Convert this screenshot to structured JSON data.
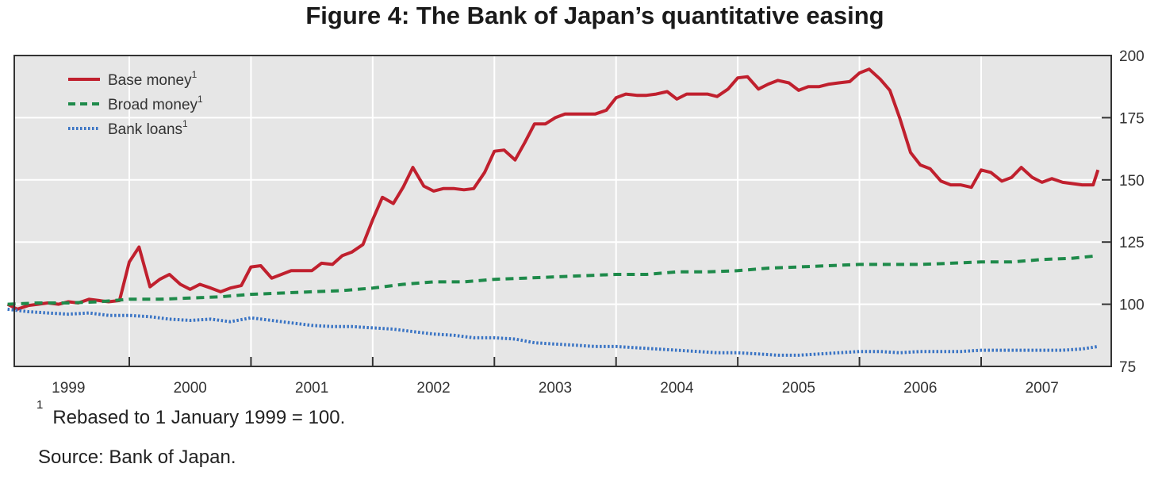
{
  "chart_data": {
    "type": "line",
    "title": "Figure 4: The Bank of Japan’s quantitative easing",
    "x_axis": {
      "ticks": [
        "1999",
        "2000",
        "2001",
        "2002",
        "2003",
        "2004",
        "2005",
        "2006",
        "2007"
      ],
      "range_years": [
        1999,
        2007.58
      ]
    },
    "y_axis": {
      "position": "right",
      "ticks": [
        75,
        100,
        125,
        150,
        175,
        200
      ],
      "ylim": [
        75,
        200
      ]
    },
    "grid": true,
    "legend_position": "top-left",
    "legend_superscript": "1",
    "series": [
      {
        "name": "Base money",
        "color": "#c0202e",
        "style": "solid",
        "points": [
          [
            1999.0,
            100
          ],
          [
            1999.08,
            98
          ],
          [
            1999.17,
            99.5
          ],
          [
            1999.25,
            100
          ],
          [
            1999.33,
            100.5
          ],
          [
            1999.42,
            100
          ],
          [
            1999.5,
            101
          ],
          [
            1999.58,
            100.5
          ],
          [
            1999.67,
            102
          ],
          [
            1999.75,
            101.5
          ],
          [
            1999.83,
            101
          ],
          [
            1999.92,
            101.5
          ],
          [
            2000.0,
            117
          ],
          [
            2000.08,
            123
          ],
          [
            2000.17,
            107
          ],
          [
            2000.25,
            110
          ],
          [
            2000.33,
            112
          ],
          [
            2000.42,
            108
          ],
          [
            2000.5,
            106
          ],
          [
            2000.58,
            108
          ],
          [
            2000.67,
            106.5
          ],
          [
            2000.75,
            105
          ],
          [
            2000.83,
            106.5
          ],
          [
            2000.92,
            107.5
          ],
          [
            2001.0,
            115
          ],
          [
            2001.08,
            115.5
          ],
          [
            2001.17,
            110.5
          ],
          [
            2001.25,
            112
          ],
          [
            2001.33,
            113.5
          ],
          [
            2001.42,
            113.5
          ],
          [
            2001.5,
            113.5
          ],
          [
            2001.58,
            116.5
          ],
          [
            2001.67,
            116
          ],
          [
            2001.75,
            119.5
          ],
          [
            2001.83,
            121
          ],
          [
            2001.92,
            124
          ],
          [
            2002.0,
            134
          ],
          [
            2002.08,
            143
          ],
          [
            2002.17,
            140.5
          ],
          [
            2002.25,
            147
          ],
          [
            2002.33,
            155
          ],
          [
            2002.42,
            147.5
          ],
          [
            2002.5,
            145.5
          ],
          [
            2002.58,
            146.5
          ],
          [
            2002.67,
            146.5
          ],
          [
            2002.75,
            146
          ],
          [
            2002.83,
            146.5
          ],
          [
            2002.92,
            153
          ],
          [
            2003.0,
            161.5
          ],
          [
            2003.08,
            162
          ],
          [
            2003.17,
            158
          ],
          [
            2003.25,
            165
          ],
          [
            2003.33,
            172.5
          ],
          [
            2003.42,
            172.5
          ],
          [
            2003.5,
            175
          ],
          [
            2003.58,
            176.5
          ],
          [
            2003.67,
            176.5
          ],
          [
            2003.75,
            176.5
          ],
          [
            2003.83,
            176.5
          ],
          [
            2003.92,
            178
          ],
          [
            2004.0,
            183
          ],
          [
            2004.08,
            184.5
          ],
          [
            2004.17,
            184
          ],
          [
            2004.25,
            184
          ],
          [
            2004.33,
            184.5
          ],
          [
            2004.42,
            185.5
          ],
          [
            2004.5,
            182.5
          ],
          [
            2004.58,
            184.5
          ],
          [
            2004.67,
            184.5
          ],
          [
            2004.75,
            184.5
          ],
          [
            2004.83,
            183.5
          ],
          [
            2004.92,
            186.5
          ],
          [
            2005.0,
            191
          ],
          [
            2005.08,
            191.5
          ],
          [
            2005.17,
            186.5
          ],
          [
            2005.25,
            188.5
          ],
          [
            2005.33,
            190
          ],
          [
            2005.42,
            189
          ],
          [
            2005.5,
            186
          ],
          [
            2005.58,
            187.5
          ],
          [
            2005.67,
            187.5
          ],
          [
            2005.75,
            188.5
          ],
          [
            2005.83,
            189
          ],
          [
            2005.92,
            189.5
          ],
          [
            2006.0,
            193
          ],
          [
            2006.08,
            194.5
          ],
          [
            2006.17,
            190.5
          ],
          [
            2006.25,
            186
          ],
          [
            2006.33,
            175
          ],
          [
            2006.42,
            161
          ],
          [
            2006.5,
            156
          ],
          [
            2006.58,
            154.5
          ],
          [
            2006.67,
            149.5
          ],
          [
            2006.75,
            148
          ],
          [
            2006.83,
            148
          ],
          [
            2006.92,
            147
          ],
          [
            2007.0,
            154
          ],
          [
            2007.08,
            153
          ],
          [
            2007.17,
            149.5
          ],
          [
            2007.25,
            151
          ],
          [
            2007.33,
            155
          ],
          [
            2007.42,
            151
          ],
          [
            2007.5,
            149
          ],
          [
            2007.58,
            150.5
          ],
          [
            2007.67,
            149
          ],
          [
            2007.75,
            148.5
          ],
          [
            2007.83,
            148
          ],
          [
            2007.92,
            148
          ],
          [
            2007.96,
            154
          ]
        ]
      },
      {
        "name": "Broad money",
        "color": "#1e8a4a",
        "style": "dashed",
        "points": [
          [
            1999.0,
            100
          ],
          [
            1999.25,
            100.5
          ],
          [
            1999.5,
            100.5
          ],
          [
            1999.75,
            101
          ],
          [
            2000.0,
            102
          ],
          [
            2000.25,
            102
          ],
          [
            2000.5,
            102.5
          ],
          [
            2000.75,
            103
          ],
          [
            2001.0,
            104
          ],
          [
            2001.25,
            104.5
          ],
          [
            2001.5,
            105
          ],
          [
            2001.75,
            105.5
          ],
          [
            2002.0,
            106.5
          ],
          [
            2002.25,
            108
          ],
          [
            2002.5,
            109
          ],
          [
            2002.75,
            109
          ],
          [
            2003.0,
            110
          ],
          [
            2003.25,
            110.5
          ],
          [
            2003.5,
            111
          ],
          [
            2003.75,
            111.5
          ],
          [
            2004.0,
            112
          ],
          [
            2004.25,
            112
          ],
          [
            2004.5,
            113
          ],
          [
            2004.75,
            113
          ],
          [
            2005.0,
            113.5
          ],
          [
            2005.25,
            114.5
          ],
          [
            2005.5,
            115
          ],
          [
            2005.75,
            115.5
          ],
          [
            2006.0,
            116
          ],
          [
            2006.25,
            116
          ],
          [
            2006.5,
            116
          ],
          [
            2006.75,
            116.5
          ],
          [
            2007.0,
            117
          ],
          [
            2007.25,
            117
          ],
          [
            2007.5,
            118
          ],
          [
            2007.75,
            118.5
          ],
          [
            2007.96,
            119.5
          ]
        ]
      },
      {
        "name": "Bank loans",
        "color": "#3a74c4",
        "style": "dotted",
        "points": [
          [
            1999.0,
            98
          ],
          [
            1999.17,
            97
          ],
          [
            1999.33,
            96.5
          ],
          [
            1999.5,
            96
          ],
          [
            1999.67,
            96.5
          ],
          [
            1999.83,
            95.5
          ],
          [
            2000.0,
            95.5
          ],
          [
            2000.17,
            95
          ],
          [
            2000.33,
            94
          ],
          [
            2000.5,
            93.5
          ],
          [
            2000.67,
            94
          ],
          [
            2000.83,
            93
          ],
          [
            2001.0,
            94.5
          ],
          [
            2001.17,
            93.5
          ],
          [
            2001.33,
            92.5
          ],
          [
            2001.5,
            91.5
          ],
          [
            2001.67,
            91
          ],
          [
            2001.83,
            91
          ],
          [
            2002.0,
            90.5
          ],
          [
            2002.17,
            90
          ],
          [
            2002.33,
            89
          ],
          [
            2002.5,
            88
          ],
          [
            2002.67,
            87.5
          ],
          [
            2002.83,
            86.5
          ],
          [
            2003.0,
            86.5
          ],
          [
            2003.17,
            86
          ],
          [
            2003.33,
            84.5
          ],
          [
            2003.5,
            84
          ],
          [
            2003.67,
            83.5
          ],
          [
            2003.83,
            83
          ],
          [
            2004.0,
            83
          ],
          [
            2004.17,
            82.5
          ],
          [
            2004.33,
            82
          ],
          [
            2004.5,
            81.5
          ],
          [
            2004.67,
            81
          ],
          [
            2004.83,
            80.5
          ],
          [
            2005.0,
            80.5
          ],
          [
            2005.17,
            80
          ],
          [
            2005.33,
            79.5
          ],
          [
            2005.5,
            79.5
          ],
          [
            2005.67,
            80
          ],
          [
            2005.83,
            80.5
          ],
          [
            2006.0,
            81
          ],
          [
            2006.17,
            81
          ],
          [
            2006.33,
            80.5
          ],
          [
            2006.5,
            81
          ],
          [
            2006.67,
            81
          ],
          [
            2006.83,
            81
          ],
          [
            2007.0,
            81.5
          ],
          [
            2007.17,
            81.5
          ],
          [
            2007.33,
            81.5
          ],
          [
            2007.5,
            81.5
          ],
          [
            2007.67,
            81.5
          ],
          [
            2007.83,
            82
          ],
          [
            2007.96,
            83
          ]
        ]
      }
    ],
    "footnote_marker": "1",
    "footnote": "Rebased to 1 January 1999 = 100.",
    "source": "Source: Bank of Japan."
  }
}
